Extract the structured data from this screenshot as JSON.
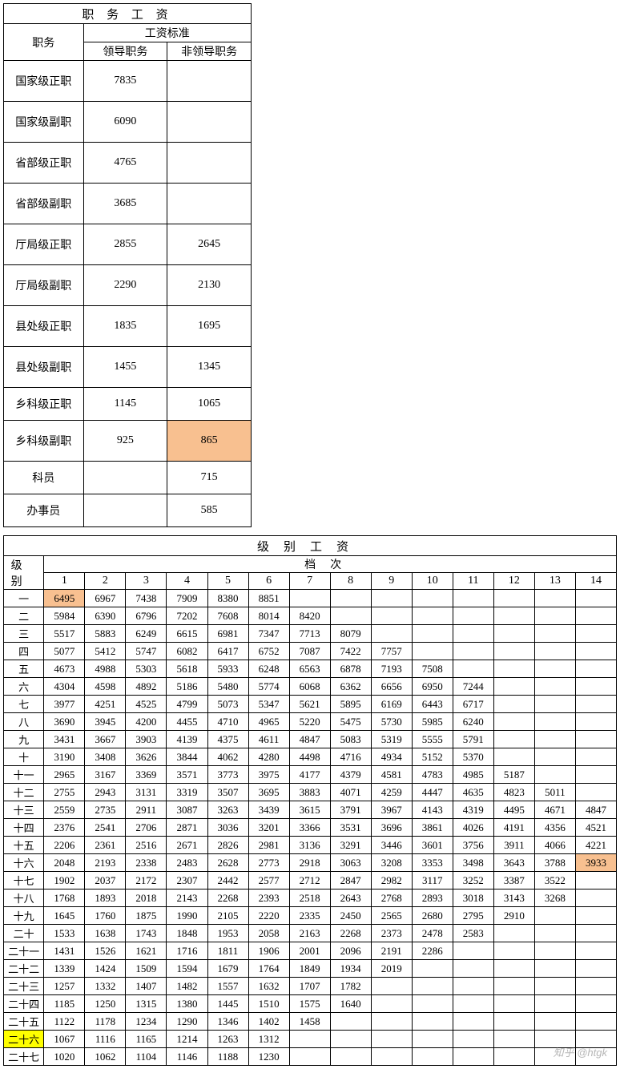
{
  "t1": {
    "title": "职 务 工 资",
    "col_pos": "职务",
    "col_std": "工资标准",
    "col_lead": "领导职务",
    "col_nonlead": "非领导职务",
    "rows": [
      {
        "pos": "国家级正职",
        "lead": "7835",
        "nonlead": "",
        "cls": "data-row"
      },
      {
        "pos": "国家级副职",
        "lead": "6090",
        "nonlead": "",
        "cls": "data-row"
      },
      {
        "pos": "省部级正职",
        "lead": "4765",
        "nonlead": "",
        "cls": "data-row"
      },
      {
        "pos": "省部级副职",
        "lead": "3685",
        "nonlead": "",
        "cls": "data-row"
      },
      {
        "pos": "厅局级正职",
        "lead": "2855",
        "nonlead": "2645",
        "cls": "data-row"
      },
      {
        "pos": "厅局级副职",
        "lead": "2290",
        "nonlead": "2130",
        "cls": "data-row"
      },
      {
        "pos": "县处级正职",
        "lead": "1835",
        "nonlead": "1695",
        "cls": "data-row"
      },
      {
        "pos": "县处级副职",
        "lead": "1455",
        "nonlead": "1345",
        "cls": "data-row"
      },
      {
        "pos": "乡科级正职",
        "lead": "1145",
        "nonlead": "1065",
        "cls": "short-row"
      },
      {
        "pos": "乡科级副职",
        "lead": "925",
        "nonlead": "865",
        "cls": "data-row",
        "hl_nonlead": "hl-orange"
      },
      {
        "pos": "科员",
        "lead": "",
        "nonlead": "715",
        "cls": "short-row"
      },
      {
        "pos": "办事员",
        "lead": "",
        "nonlead": "585",
        "cls": "short-row"
      }
    ]
  },
  "t2": {
    "title": "级别工资",
    "col_grade": "级别",
    "col_levels": "档次",
    "headers": [
      "1",
      "2",
      "3",
      "4",
      "5",
      "6",
      "7",
      "8",
      "9",
      "10",
      "11",
      "12",
      "13",
      "14"
    ],
    "rows": [
      {
        "g": "一",
        "v": [
          "6495",
          "6967",
          "7438",
          "7909",
          "8380",
          "8851",
          "",
          "",
          "",
          "",
          "",
          "",
          "",
          ""
        ],
        "hl": {
          "0": "hl-orange"
        }
      },
      {
        "g": "二",
        "v": [
          "5984",
          "6390",
          "6796",
          "7202",
          "7608",
          "8014",
          "8420",
          "",
          "",
          "",
          "",
          "",
          "",
          ""
        ]
      },
      {
        "g": "三",
        "v": [
          "5517",
          "5883",
          "6249",
          "6615",
          "6981",
          "7347",
          "7713",
          "8079",
          "",
          "",
          "",
          "",
          "",
          ""
        ]
      },
      {
        "g": "四",
        "v": [
          "5077",
          "5412",
          "5747",
          "6082",
          "6417",
          "6752",
          "7087",
          "7422",
          "7757",
          "",
          "",
          "",
          "",
          ""
        ]
      },
      {
        "g": "五",
        "v": [
          "4673",
          "4988",
          "5303",
          "5618",
          "5933",
          "6248",
          "6563",
          "6878",
          "7193",
          "7508",
          "",
          "",
          "",
          ""
        ]
      },
      {
        "g": "六",
        "v": [
          "4304",
          "4598",
          "4892",
          "5186",
          "5480",
          "5774",
          "6068",
          "6362",
          "6656",
          "6950",
          "7244",
          "",
          "",
          ""
        ]
      },
      {
        "g": "七",
        "v": [
          "3977",
          "4251",
          "4525",
          "4799",
          "5073",
          "5347",
          "5621",
          "5895",
          "6169",
          "6443",
          "6717",
          "",
          "",
          ""
        ]
      },
      {
        "g": "八",
        "v": [
          "3690",
          "3945",
          "4200",
          "4455",
          "4710",
          "4965",
          "5220",
          "5475",
          "5730",
          "5985",
          "6240",
          "",
          "",
          ""
        ]
      },
      {
        "g": "九",
        "v": [
          "3431",
          "3667",
          "3903",
          "4139",
          "4375",
          "4611",
          "4847",
          "5083",
          "5319",
          "5555",
          "5791",
          "",
          "",
          ""
        ]
      },
      {
        "g": "十",
        "v": [
          "3190",
          "3408",
          "3626",
          "3844",
          "4062",
          "4280",
          "4498",
          "4716",
          "4934",
          "5152",
          "5370",
          "",
          "",
          ""
        ]
      },
      {
        "g": "十一",
        "v": [
          "2965",
          "3167",
          "3369",
          "3571",
          "3773",
          "3975",
          "4177",
          "4379",
          "4581",
          "4783",
          "4985",
          "5187",
          "",
          ""
        ]
      },
      {
        "g": "十二",
        "v": [
          "2755",
          "2943",
          "3131",
          "3319",
          "3507",
          "3695",
          "3883",
          "4071",
          "4259",
          "4447",
          "4635",
          "4823",
          "5011",
          ""
        ]
      },
      {
        "g": "十三",
        "v": [
          "2559",
          "2735",
          "2911",
          "3087",
          "3263",
          "3439",
          "3615",
          "3791",
          "3967",
          "4143",
          "4319",
          "4495",
          "4671",
          "4847"
        ]
      },
      {
        "g": "十四",
        "v": [
          "2376",
          "2541",
          "2706",
          "2871",
          "3036",
          "3201",
          "3366",
          "3531",
          "3696",
          "3861",
          "4026",
          "4191",
          "4356",
          "4521"
        ]
      },
      {
        "g": "十五",
        "v": [
          "2206",
          "2361",
          "2516",
          "2671",
          "2826",
          "2981",
          "3136",
          "3291",
          "3446",
          "3601",
          "3756",
          "3911",
          "4066",
          "4221"
        ]
      },
      {
        "g": "十六",
        "v": [
          "2048",
          "2193",
          "2338",
          "2483",
          "2628",
          "2773",
          "2918",
          "3063",
          "3208",
          "3353",
          "3498",
          "3643",
          "3788",
          "3933"
        ],
        "hl": {
          "13": "hl-orange"
        }
      },
      {
        "g": "十七",
        "v": [
          "1902",
          "2037",
          "2172",
          "2307",
          "2442",
          "2577",
          "2712",
          "2847",
          "2982",
          "3117",
          "3252",
          "3387",
          "3522",
          ""
        ]
      },
      {
        "g": "十八",
        "v": [
          "1768",
          "1893",
          "2018",
          "2143",
          "2268",
          "2393",
          "2518",
          "2643",
          "2768",
          "2893",
          "3018",
          "3143",
          "3268",
          ""
        ]
      },
      {
        "g": "十九",
        "v": [
          "1645",
          "1760",
          "1875",
          "1990",
          "2105",
          "2220",
          "2335",
          "2450",
          "2565",
          "2680",
          "2795",
          "2910",
          "",
          ""
        ]
      },
      {
        "g": "二十",
        "v": [
          "1533",
          "1638",
          "1743",
          "1848",
          "1953",
          "2058",
          "2163",
          "2268",
          "2373",
          "2478",
          "2583",
          "",
          "",
          ""
        ]
      },
      {
        "g": "二十一",
        "v": [
          "1431",
          "1526",
          "1621",
          "1716",
          "1811",
          "1906",
          "2001",
          "2096",
          "2191",
          "2286",
          "",
          "",
          "",
          ""
        ]
      },
      {
        "g": "二十二",
        "v": [
          "1339",
          "1424",
          "1509",
          "1594",
          "1679",
          "1764",
          "1849",
          "1934",
          "2019",
          "",
          "",
          "",
          "",
          ""
        ]
      },
      {
        "g": "二十三",
        "v": [
          "1257",
          "1332",
          "1407",
          "1482",
          "1557",
          "1632",
          "1707",
          "1782",
          "",
          "",
          "",
          "",
          "",
          ""
        ]
      },
      {
        "g": "二十四",
        "v": [
          "1185",
          "1250",
          "1315",
          "1380",
          "1445",
          "1510",
          "1575",
          "1640",
          "",
          "",
          "",
          "",
          "",
          ""
        ]
      },
      {
        "g": "二十五",
        "v": [
          "1122",
          "1178",
          "1234",
          "1290",
          "1346",
          "1402",
          "1458",
          "",
          "",
          "",
          "",
          "",
          "",
          ""
        ]
      },
      {
        "g": "二十六",
        "v": [
          "1067",
          "1116",
          "1165",
          "1214",
          "1263",
          "1312",
          "",
          "",
          "",
          "",
          "",
          "",
          "",
          ""
        ],
        "ghl": "hl-yellow"
      },
      {
        "g": "二十七",
        "v": [
          "1020",
          "1062",
          "1104",
          "1146",
          "1188",
          "1230",
          "",
          "",
          "",
          "",
          "",
          "",
          "",
          ""
        ]
      }
    ]
  },
  "watermark": "知乎 @htgk"
}
